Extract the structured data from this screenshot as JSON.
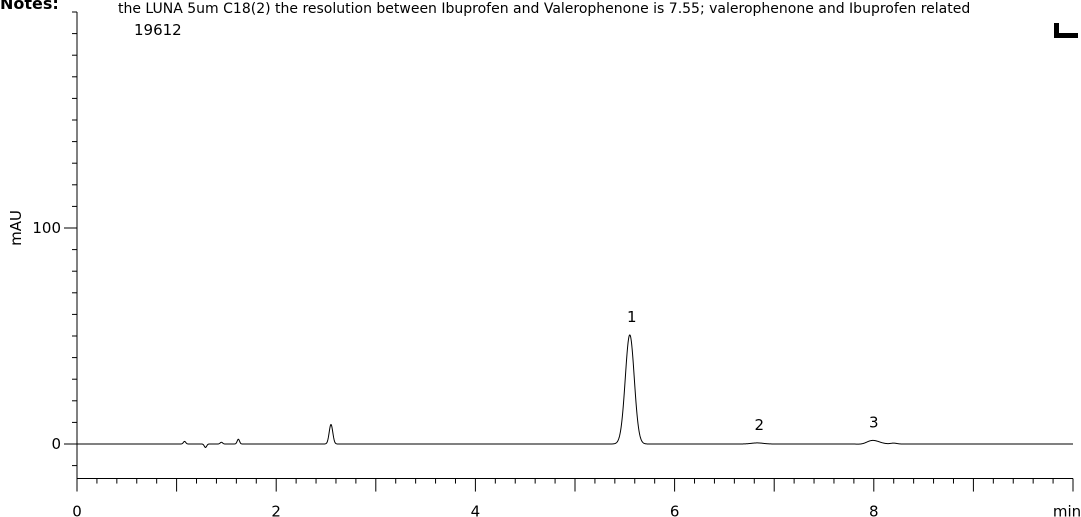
{
  "notes_label": "Notes:",
  "note_text": "the LUNA 5um C18(2) the resolution between Ibuprofen and Valerophenone is 7.55; valerophenone and Ibuprofen related",
  "sample_id": "19612",
  "chart_data": {
    "type": "line",
    "title": "",
    "xlabel": "min",
    "ylabel": "mAU",
    "xlim": [
      0,
      10
    ],
    "ylim": [
      -16,
      200
    ],
    "x_ticks": [
      0,
      2,
      4,
      6,
      8
    ],
    "x_tick_labels": [
      "0",
      "2",
      "4",
      "6",
      "8"
    ],
    "x_unit_label": "min",
    "y_ticks": [
      0,
      100
    ],
    "y_tick_labels": [
      "0",
      "100"
    ],
    "grid": false,
    "legend": "none",
    "line_color": "#000000",
    "baseline_end_min": 10.0,
    "peaks": [
      {
        "label": "1",
        "rt": 5.55,
        "height": 50.5,
        "width": 0.045
      },
      {
        "label": "2",
        "rt": 6.83,
        "height": 0.5,
        "width": 0.06
      },
      {
        "label": "3",
        "rt": 7.98,
        "height": 1.8,
        "width": 0.07
      }
    ],
    "minor_peaks": [
      {
        "rt": 1.08,
        "height": 1.2,
        "width": 0.012
      },
      {
        "rt": 1.29,
        "height": -1.6,
        "width": 0.012
      },
      {
        "rt": 1.45,
        "height": 0.8,
        "width": 0.012
      },
      {
        "rt": 1.62,
        "height": 2.2,
        "width": 0.012
      },
      {
        "rt": 2.55,
        "height": 9.0,
        "width": 0.018
      },
      {
        "rt": 7.9,
        "height": -0.6,
        "width": 0.05
      },
      {
        "rt": 8.2,
        "height": 0.4,
        "width": 0.03
      }
    ]
  }
}
